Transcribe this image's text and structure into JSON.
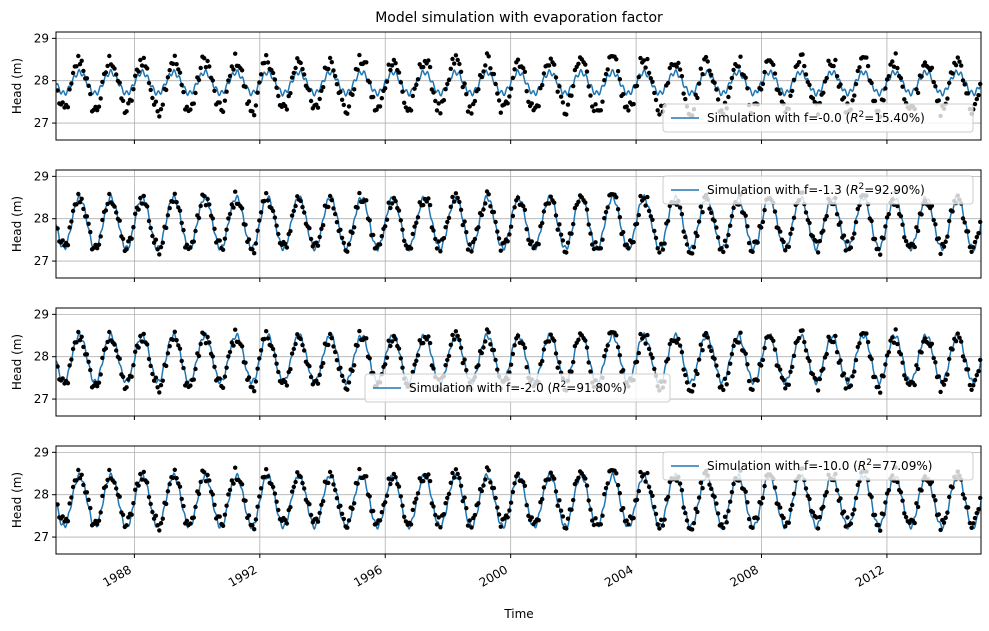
{
  "chart_data": {
    "type": "line",
    "title": "Model simulation with evaporation factor",
    "xlabel": "Time",
    "xlim": [
      1985.5,
      2015.0
    ],
    "x_ticks": [
      1988,
      1992,
      1996,
      2000,
      2004,
      2008,
      2012
    ],
    "x_tick_labels": [
      "1988",
      "1992",
      "1996",
      "2000",
      "2004",
      "2008",
      "2012"
    ],
    "grid": true,
    "colors": {
      "simulation": "#1f77b4",
      "observations": "#000000"
    },
    "observations": {
      "description_of_pattern": "black dots, same in all panels",
      "mean": 27.9,
      "amplitude": 0.6,
      "period_years": 1.0
    },
    "panels": [
      {
        "ylabel": "Head (m)",
        "ylim": [
          26.6,
          29.15
        ],
        "y_ticks": [
          27,
          28,
          29
        ],
        "legend": {
          "label": "Simulation with f=-0.0",
          "r2": "15.40%",
          "position": "lower-right"
        },
        "sim": {
          "mean": 27.95,
          "amplitude": 0.25
        }
      },
      {
        "ylabel": "Head (m)",
        "ylim": [
          26.6,
          29.15
        ],
        "y_ticks": [
          27,
          28,
          29
        ],
        "legend": {
          "label": "Simulation with f=-1.3",
          "r2": "92.90%",
          "position": "upper-right"
        },
        "sim": {
          "mean": 27.9,
          "amplitude": 0.6
        }
      },
      {
        "ylabel": "Head (m)",
        "ylim": [
          26.6,
          29.15
        ],
        "y_ticks": [
          27,
          28,
          29
        ],
        "legend": {
          "label": "Simulation with f=-2.0",
          "r2": "91.80%",
          "position": "lower-center"
        },
        "sim": {
          "mean": 27.95,
          "amplitude": 0.55
        }
      },
      {
        "ylabel": "Head (m)",
        "ylim": [
          26.6,
          29.15
        ],
        "y_ticks": [
          27,
          28,
          29
        ],
        "legend": {
          "label": "Simulation with f=-10.0",
          "r2": "77.09%",
          "position": "upper-right"
        },
        "sim": {
          "mean": 27.85,
          "amplitude": 0.6
        }
      }
    ]
  }
}
